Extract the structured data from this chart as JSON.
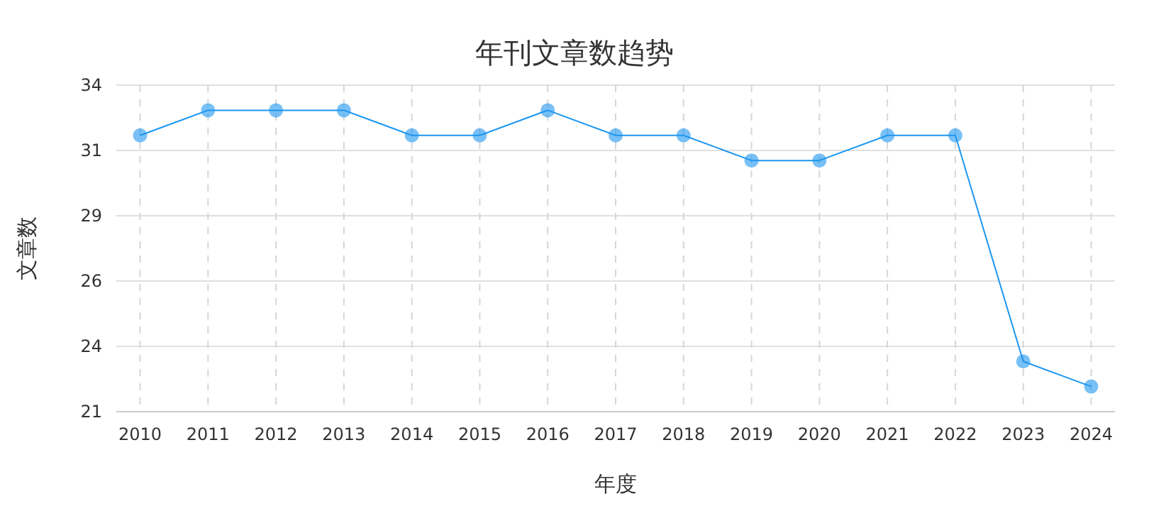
{
  "chart_data": {
    "type": "line",
    "title": "年刊文章数趋势",
    "xlabel": "年度",
    "ylabel": "文章数",
    "categories": [
      "2010",
      "2011",
      "2012",
      "2013",
      "2014",
      "2015",
      "2016",
      "2017",
      "2018",
      "2019",
      "2020",
      "2021",
      "2022",
      "2023",
      "2024"
    ],
    "series": [
      {
        "color": "#1e96f0",
        "values": [
          32,
          33,
          33,
          33,
          32,
          32,
          33,
          32,
          32,
          31,
          31,
          32,
          32,
          23,
          22
        ]
      }
    ],
    "ylim": [
      21,
      34
    ],
    "yticks": [
      {
        "value": 21,
        "label": "21"
      },
      {
        "value": 23.6,
        "label": "24"
      },
      {
        "value": 26.2,
        "label": "26"
      },
      {
        "value": 28.8,
        "label": "29"
      },
      {
        "value": 31.4,
        "label": "31"
      },
      {
        "value": 34,
        "label": "34"
      }
    ],
    "grid": true,
    "marker": "circle",
    "line_style": "solid"
  }
}
